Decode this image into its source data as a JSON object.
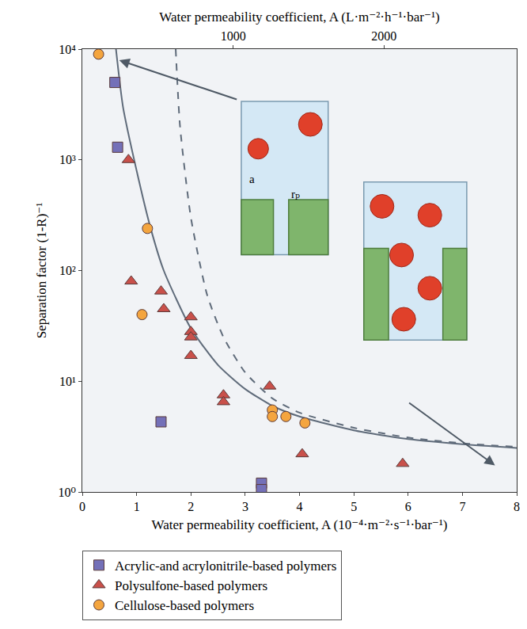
{
  "chart_data": {
    "type": "scatter",
    "x_label": "Water permeability coefficient, A (10⁻⁴·m⁻²·s⁻¹·bar⁻¹)",
    "x2_label": "Water permeability coefficient, A (L·m⁻²·h⁻¹·bar⁻¹)",
    "y_label": "Separation factor (1-R)⁻¹",
    "xlim": [
      0,
      8
    ],
    "xticks": [
      0,
      1,
      2,
      3,
      4,
      5,
      6,
      7,
      8
    ],
    "x2lim": [
      0,
      2880
    ],
    "x2ticks": [
      1000,
      2000
    ],
    "ylim": [
      1,
      10000
    ],
    "yticks": [
      {
        "value": 1,
        "label": "10⁰"
      },
      {
        "value": 10,
        "label": "10¹"
      },
      {
        "value": 100,
        "label": "10²"
      },
      {
        "value": 1000,
        "label": "10³"
      },
      {
        "value": 10000,
        "label": "10⁴"
      }
    ],
    "log": "y",
    "grid": false,
    "legend": "bottom",
    "annotations": [
      "a",
      "rₚ"
    ],
    "series": [
      {
        "type": "line",
        "line_style": "solid",
        "color": "#5f6b7a",
        "x": [
          0.62,
          0.75,
          1,
          1.25,
          1.5,
          2,
          2.5,
          3,
          3.5,
          4,
          5,
          6,
          7,
          8
        ],
        "values": [
          10000,
          3000,
          800,
          250,
          100,
          30,
          14,
          8.5,
          6,
          4.8,
          3.6,
          3.0,
          2.7,
          2.5
        ]
      },
      {
        "type": "line",
        "line_style": "dashed",
        "color": "#5f6b7a",
        "x": [
          1.72,
          1.8,
          2,
          2.3,
          2.6,
          3,
          3.5,
          4,
          5,
          6,
          7,
          8
        ],
        "values": [
          10000,
          2000,
          300,
          60,
          25,
          12,
          7,
          5.2,
          3.8,
          3.1,
          2.75,
          2.55
        ]
      },
      {
        "name": "Acrylic-and acrylonitrile-based polymers",
        "type": "scatter",
        "marker": "square",
        "color": "#7470b8",
        "x": [
          0.6,
          0.65,
          1.45,
          3.3,
          3.3
        ],
        "values": [
          5000,
          1300,
          4.3,
          1.2,
          1.05
        ]
      },
      {
        "name": "Polysulfone-based polymers",
        "type": "scatter",
        "marker": "triangle-up",
        "color": "#c9504a",
        "x": [
          0.85,
          0.9,
          1.45,
          1.5,
          2,
          2,
          2,
          2,
          2.6,
          2.6,
          3.45,
          4.05,
          5.9
        ],
        "values": [
          1000,
          80,
          65,
          45,
          38,
          28,
          25,
          17,
          7.5,
          6.5,
          9,
          2.2,
          1.8
        ]
      },
      {
        "name": "Cellulose-based polymers",
        "type": "scatter",
        "marker": "circle",
        "color": "#f4a53f",
        "x": [
          0.3,
          1.2,
          1.1,
          3.5,
          3.5,
          3.75,
          4.1
        ],
        "values": [
          9000,
          240,
          40,
          5.5,
          4.8,
          4.8,
          4.2
        ]
      }
    ]
  }
}
